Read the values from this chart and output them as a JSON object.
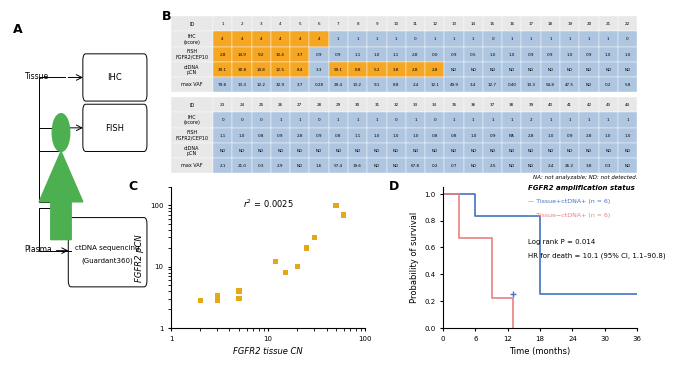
{
  "panel_B_top": {
    "ids": [
      1,
      2,
      3,
      4,
      5,
      6,
      7,
      8,
      9,
      10,
      11,
      12,
      13,
      14,
      15,
      16,
      17,
      18,
      19,
      20,
      21,
      22
    ],
    "IHC": [
      4,
      4,
      4,
      4,
      4,
      4,
      1,
      1,
      1,
      1,
      0,
      1,
      1,
      1,
      0,
      1,
      1,
      1,
      1,
      1,
      1,
      0
    ],
    "FISH": [
      2.8,
      14.9,
      9.2,
      10.4,
      3.7,
      0.9,
      0.9,
      1.1,
      1.0,
      1.1,
      2.8,
      0.0,
      0.9,
      0.5,
      1.0,
      1.0,
      0.9,
      0.9,
      1.0,
      0.9,
      1.0,
      1.0
    ],
    "ctDNA_pCN": [
      "39.1",
      "30.8",
      "14.8",
      "12.5",
      "8.4",
      "3.3",
      "99.1",
      "8.8",
      "5.2",
      "3.8",
      "2.8",
      "2.8",
      "ND",
      "ND",
      "ND",
      "ND",
      "ND",
      "ND",
      "ND",
      "ND",
      "ND",
      "ND"
    ],
    "maxVAF": [
      "79.8",
      "13.3",
      "12.2",
      "32.9",
      "3.7",
      "0.28",
      "29.4",
      "13.2",
      "9.1",
      "8.8",
      "2.4",
      "12.1",
      "49.9",
      "3.4",
      "12.7",
      "0.40",
      "10.3",
      "54.8",
      "47.5",
      "ND",
      "0.2",
      "5.8"
    ],
    "IHC_colors": [
      "orange",
      "orange",
      "orange",
      "orange",
      "orange",
      "orange",
      "lightblue",
      "lightblue",
      "lightblue",
      "lightblue",
      "lightblue",
      "lightblue",
      "lightblue",
      "lightblue",
      "lightblue",
      "lightblue",
      "lightblue",
      "lightblue",
      "lightblue",
      "lightblue",
      "lightblue",
      "lightblue"
    ],
    "FISH_colors": [
      "orange",
      "orange",
      "orange",
      "orange",
      "orange",
      "lightblue",
      "lightblue",
      "lightblue",
      "lightblue",
      "lightblue",
      "lightblue",
      "lightblue",
      "lightblue",
      "lightblue",
      "lightblue",
      "lightblue",
      "lightblue",
      "lightblue",
      "lightblue",
      "lightblue",
      "lightblue",
      "lightblue"
    ],
    "ctDNA_colors": [
      "orange",
      "orange",
      "orange",
      "orange",
      "orange",
      "lightblue",
      "orange",
      "orange",
      "orange",
      "orange",
      "orange",
      "orange",
      "lightblue",
      "lightblue",
      "lightblue",
      "lightblue",
      "lightblue",
      "lightblue",
      "lightblue",
      "lightblue",
      "lightblue",
      "lightblue"
    ],
    "maxVAF_colors": [
      "lightblue",
      "lightblue",
      "lightblue",
      "lightblue",
      "lightblue",
      "lightblue",
      "lightblue",
      "lightblue",
      "lightblue",
      "lightblue",
      "lightblue",
      "lightblue",
      "lightblue",
      "lightblue",
      "lightblue",
      "lightblue",
      "lightblue",
      "lightblue",
      "lightblue",
      "lightblue",
      "lightblue",
      "lightblue"
    ]
  },
  "panel_B_bot": {
    "ids": [
      23,
      24,
      25,
      26,
      27,
      28,
      29,
      30,
      31,
      32,
      33,
      34,
      35,
      36,
      37,
      38,
      39,
      40,
      41,
      42,
      43,
      44
    ],
    "IHC": [
      0,
      0,
      0,
      1,
      1,
      0,
      1,
      1,
      1,
      0,
      1,
      0,
      1,
      1,
      1,
      1,
      2,
      1,
      1,
      1,
      1,
      1
    ],
    "FISH": [
      "1.1",
      "1.0",
      "0.8",
      "0.9",
      "2.8",
      "0.9",
      "0.8",
      "1.1",
      "1.0",
      "1.0",
      "1.0",
      "0.8",
      "0.8",
      "1.0",
      "0.9",
      "NA",
      "2.8",
      "1.0",
      "0.9",
      "2.8",
      "1.0",
      "1.0"
    ],
    "ctDNA_pCN": [
      "ND",
      "ND",
      "ND",
      "ND",
      "ND",
      "ND",
      "ND",
      "ND",
      "ND",
      "ND",
      "ND",
      "ND",
      "ND",
      "ND",
      "ND",
      "ND",
      "ND",
      "ND",
      "ND",
      "ND",
      "ND",
      "ND"
    ],
    "maxVAF": [
      "2.1",
      "21.0",
      "0.3",
      "2.9",
      "ND",
      "1.6",
      "57.4",
      "19.6",
      "ND",
      "ND",
      "67.8",
      "0.2",
      "0.7",
      "ND",
      "2.5",
      "ND",
      "ND",
      "2.4",
      "26.2",
      "3.8",
      "0.3",
      "ND"
    ],
    "IHC_colors": [
      "lightblue",
      "lightblue",
      "lightblue",
      "lightblue",
      "lightblue",
      "lightblue",
      "lightblue",
      "lightblue",
      "lightblue",
      "lightblue",
      "lightblue",
      "lightblue",
      "lightblue",
      "lightblue",
      "lightblue",
      "lightblue",
      "lightblue",
      "lightblue",
      "lightblue",
      "lightblue",
      "lightblue",
      "lightblue"
    ],
    "FISH_colors": [
      "lightblue",
      "lightblue",
      "lightblue",
      "lightblue",
      "lightblue",
      "lightblue",
      "lightblue",
      "lightblue",
      "lightblue",
      "lightblue",
      "lightblue",
      "lightblue",
      "lightblue",
      "lightblue",
      "lightblue",
      "lightblue",
      "lightblue",
      "lightblue",
      "lightblue",
      "lightblue",
      "lightblue",
      "lightblue"
    ],
    "ctDNA_colors": [
      "lightblue",
      "lightblue",
      "lightblue",
      "lightblue",
      "lightblue",
      "lightblue",
      "lightblue",
      "lightblue",
      "lightblue",
      "lightblue",
      "lightblue",
      "lightblue",
      "lightblue",
      "lightblue",
      "lightblue",
      "lightblue",
      "lightblue",
      "lightblue",
      "lightblue",
      "lightblue",
      "lightblue",
      "lightblue"
    ],
    "maxVAF_colors": [
      "lightblue",
      "lightblue",
      "lightblue",
      "lightblue",
      "lightblue",
      "lightblue",
      "lightblue",
      "lightblue",
      "lightblue",
      "lightblue",
      "lightblue",
      "lightblue",
      "lightblue",
      "lightblue",
      "lightblue",
      "lightblue",
      "lightblue",
      "lightblue",
      "lightblue",
      "lightblue",
      "lightblue",
      "lightblue"
    ]
  },
  "scatter_C": {
    "x": [
      2,
      3,
      3,
      5,
      5,
      12,
      15,
      20,
      25,
      30,
      50,
      60
    ],
    "y": [
      2.8,
      2.8,
      3.3,
      3,
      4,
      12,
      8,
      10,
      20,
      30,
      100,
      70
    ],
    "r2": "0.0025",
    "color": "#E6A817"
  },
  "KM_D": {
    "tissue_pos_ctdna_pos": {
      "times": [
        0,
        6,
        12,
        13,
        18,
        24,
        30,
        36
      ],
      "surv": [
        1.0,
        0.83,
        0.83,
        0.83,
        0.25,
        0.25,
        0.25,
        0.25
      ],
      "color": "#4472C4",
      "label": "Tissue+ctDNA+ (n = 6)"
    },
    "tissue_neg_ctdna_pos": {
      "times": [
        0,
        3,
        6,
        9,
        12,
        13
      ],
      "surv": [
        1.0,
        0.67,
        0.67,
        0.22,
        0.22,
        0.0
      ],
      "color": "#E88080",
      "label": "Tissue−ctDNA+ (n = 6)"
    },
    "logrank_p": "0.014",
    "HR": "10.1 (95% CI, 1.1–90.8)"
  },
  "note": "NA: not analyzable; ND: not detected."
}
